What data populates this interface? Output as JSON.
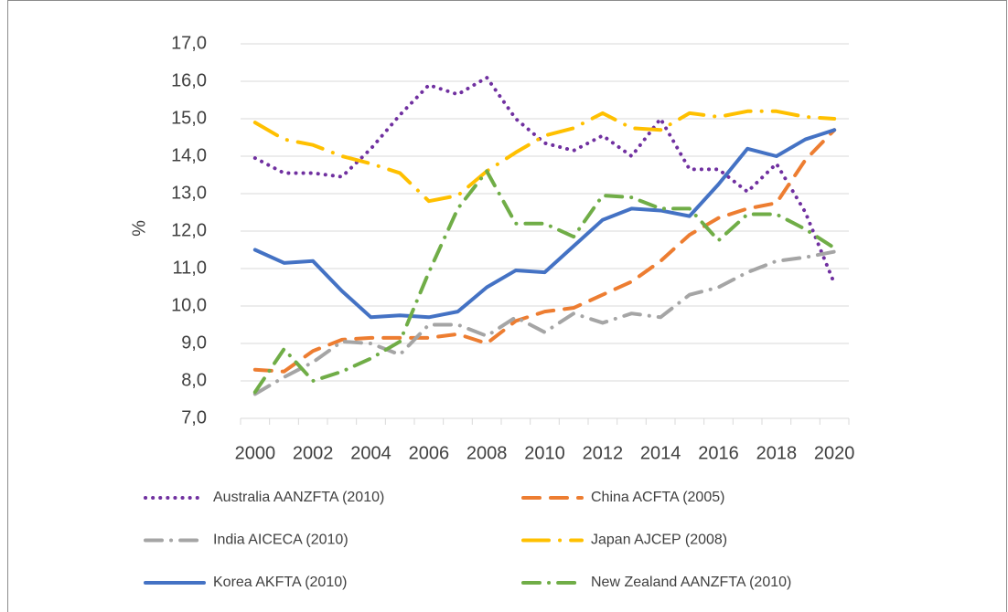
{
  "chart_data": {
    "type": "line",
    "x": [
      2000,
      2001,
      2002,
      2003,
      2004,
      2005,
      2006,
      2007,
      2008,
      2009,
      2010,
      2011,
      2012,
      2013,
      2014,
      2015,
      2016,
      2017,
      2018,
      2019,
      2020
    ],
    "xlim": [
      1999.5,
      2020.5
    ],
    "xticks": [
      2000,
      2002,
      2004,
      2006,
      2008,
      2010,
      2012,
      2014,
      2016,
      2018,
      2020
    ],
    "ylabel": "%",
    "ylim": [
      7,
      17
    ],
    "yticks": [
      {
        "value": 7,
        "label": "7,0"
      },
      {
        "value": 8,
        "label": "8,0"
      },
      {
        "value": 9,
        "label": "9,0"
      },
      {
        "value": 10,
        "label": "10,0"
      },
      {
        "value": 11,
        "label": "11,0"
      },
      {
        "value": 12,
        "label": "12,0"
      },
      {
        "value": 13,
        "label": "13,0"
      },
      {
        "value": 14,
        "label": "14,0"
      },
      {
        "value": 15,
        "label": "15,0"
      },
      {
        "value": 16,
        "label": "16,0"
      },
      {
        "value": 17,
        "label": "17,0"
      }
    ],
    "grid": true,
    "legend": "bottom",
    "series": [
      {
        "name": "Australia AANZFTA (2010)",
        "color": "#7030a0",
        "style": "dotted",
        "values": [
          13.95,
          13.55,
          13.55,
          13.45,
          14.2,
          15.1,
          15.9,
          15.65,
          16.1,
          15.0,
          14.35,
          14.15,
          14.55,
          14.0,
          15.0,
          13.65,
          13.65,
          13.05,
          13.8,
          12.5,
          10.6
        ]
      },
      {
        "name": "China ACFTA (2005)",
        "color": "#ed7d31",
        "style": "dashed",
        "values": [
          8.3,
          8.25,
          8.8,
          9.1,
          9.15,
          9.15,
          9.15,
          9.25,
          9.0,
          9.6,
          9.85,
          9.95,
          10.3,
          10.65,
          11.2,
          11.9,
          12.35,
          12.6,
          12.75,
          13.9,
          14.7
        ]
      },
      {
        "name": "India AICECA (2010)",
        "color": "#a5a5a5",
        "style": "dash-dot",
        "values": [
          7.65,
          8.1,
          8.5,
          9.05,
          9.0,
          8.7,
          9.5,
          9.5,
          9.2,
          9.7,
          9.3,
          9.8,
          9.55,
          9.8,
          9.7,
          10.3,
          10.5,
          10.9,
          11.2,
          11.3,
          11.45
        ]
      },
      {
        "name": "Japan AJCEP (2008)",
        "color": "#ffc000",
        "style": "long-dash-dot",
        "values": [
          14.9,
          14.45,
          14.3,
          14.0,
          13.8,
          13.55,
          12.8,
          12.95,
          13.6,
          14.1,
          14.55,
          14.75,
          15.15,
          14.75,
          14.7,
          15.15,
          15.05,
          15.2,
          15.2,
          15.05,
          15.0
        ]
      },
      {
        "name": "Korea AKFTA (2010)",
        "color": "#4472c4",
        "style": "solid",
        "values": [
          11.5,
          11.15,
          11.2,
          10.4,
          9.7,
          9.75,
          9.7,
          9.85,
          10.5,
          10.95,
          10.9,
          11.6,
          12.3,
          12.6,
          12.55,
          12.4,
          13.25,
          14.2,
          14.0,
          14.45,
          14.7
        ]
      },
      {
        "name": "New Zealand AANZFTA (2010)",
        "color": "#70ad47",
        "style": "dash-dot",
        "values": [
          7.7,
          8.85,
          8.0,
          8.25,
          8.6,
          9.05,
          10.9,
          12.6,
          13.6,
          12.2,
          12.2,
          11.85,
          12.95,
          12.9,
          12.6,
          12.6,
          11.75,
          12.45,
          12.45,
          12.05,
          11.55
        ]
      }
    ]
  }
}
